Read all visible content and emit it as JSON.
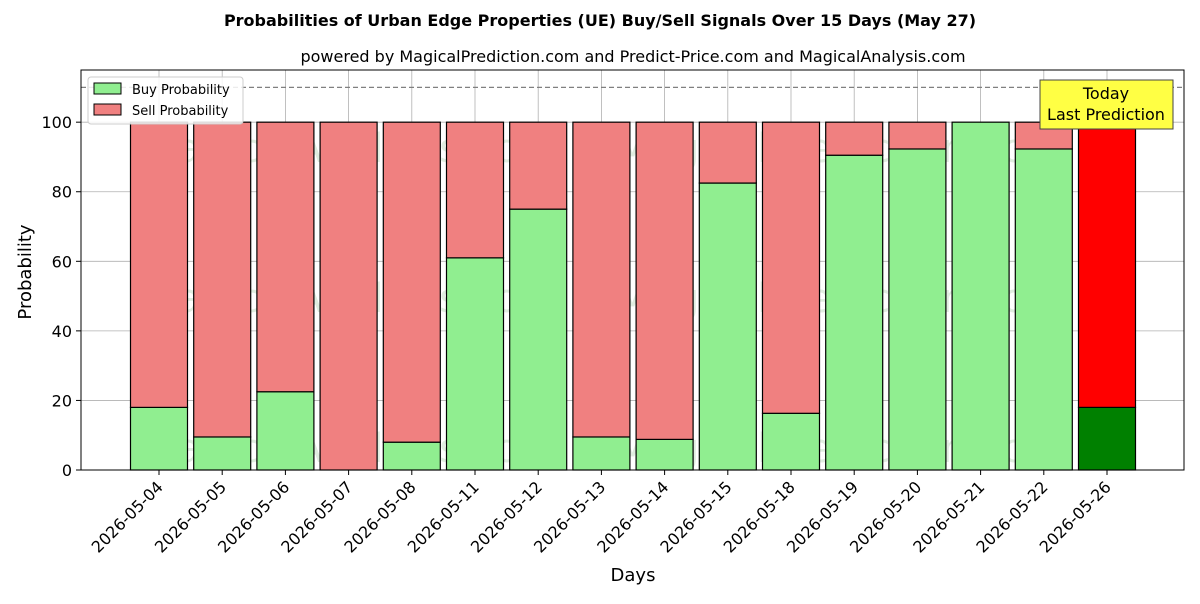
{
  "chart_data": {
    "type": "bar",
    "stacked": true,
    "title": "Probabilities of Urban Edge Properties (UE) Buy/Sell Signals Over 15 Days (May 27)",
    "subtitle": "powered by MagicalPrediction.com and Predict-Price.com and MagicalAnalysis.com",
    "xlabel": "Days",
    "ylabel": "Probability",
    "ylim": [
      0,
      115
    ],
    "yticks": [
      0,
      20,
      40,
      60,
      80,
      100
    ],
    "grid": true,
    "legend_position": "top-left",
    "reference_line": 110,
    "categories": [
      "2026-05-04",
      "2026-05-05",
      "2026-05-06",
      "2026-05-07",
      "2026-05-08",
      "2026-05-11",
      "2026-05-12",
      "2026-05-13",
      "2026-05-14",
      "2026-05-15",
      "2026-05-18",
      "2026-05-19",
      "2026-05-20",
      "2026-05-21",
      "2026-05-22",
      "2026-05-26"
    ],
    "series": [
      {
        "name": "Buy Probability",
        "color": "#90ee90",
        "values": [
          18,
          9.5,
          22.5,
          0,
          8,
          61,
          75,
          9.5,
          8.8,
          82.5,
          16.3,
          90.5,
          92.3,
          100,
          92.3,
          18
        ]
      },
      {
        "name": "Sell Probability",
        "color": "#f08080",
        "values": [
          82,
          90.5,
          77.5,
          100,
          92,
          39,
          25,
          90.5,
          91.2,
          17.5,
          83.7,
          9.5,
          7.7,
          0,
          7.7,
          82
        ]
      }
    ],
    "highlight": {
      "index": 15,
      "buy_color": "#008000",
      "sell_color": "#ff0000"
    },
    "annotation": {
      "line1": "Today",
      "line2": "Last Prediction",
      "color": "#ffff44"
    },
    "watermarks": [
      "MagicalAnalysis.com",
      "MagicalPrediction.com"
    ]
  }
}
